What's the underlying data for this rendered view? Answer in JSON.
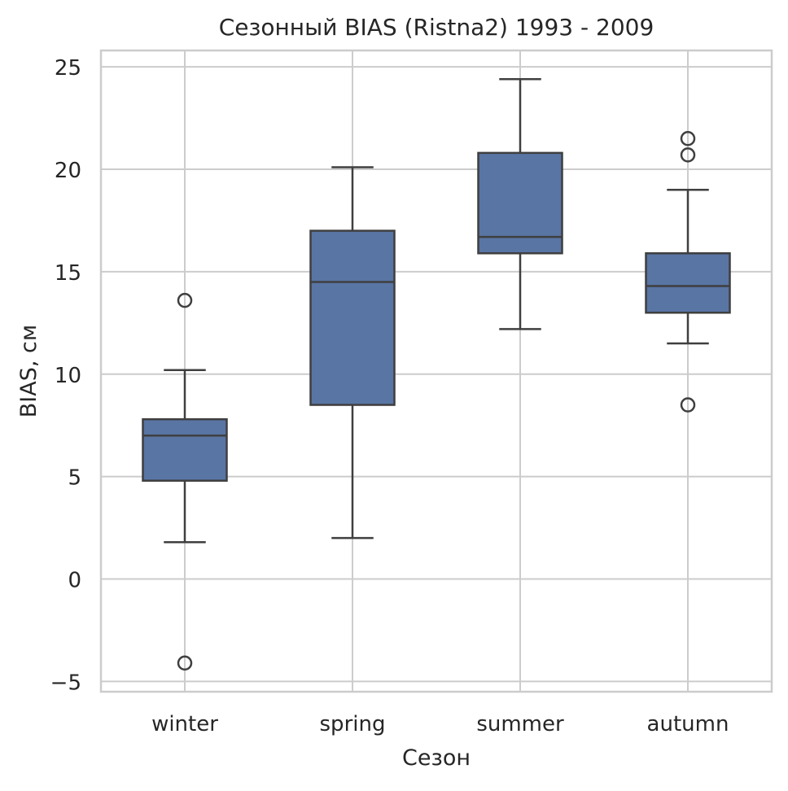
{
  "chart_data": {
    "type": "box",
    "title": "Сезонный BIAS (Ristna2) 1993 - 2009",
    "xlabel": "Сезон",
    "ylabel": "BIAS, см",
    "ylim": [
      -5.5,
      25.8
    ],
    "yticks": [
      -5,
      0,
      5,
      10,
      15,
      20,
      25
    ],
    "ytick_labels": [
      "−5",
      "0",
      "5",
      "10",
      "15",
      "20",
      "25"
    ],
    "grid": true,
    "categories": [
      "winter",
      "spring",
      "summer",
      "autumn"
    ],
    "boxes": [
      {
        "category": "winter",
        "whisker_low": 1.8,
        "q1": 4.8,
        "median": 7.0,
        "q3": 7.8,
        "whisker_high": 10.2,
        "outliers": [
          13.6,
          -4.1
        ]
      },
      {
        "category": "spring",
        "whisker_low": 2.0,
        "q1": 8.5,
        "median": 14.5,
        "q3": 17.0,
        "whisker_high": 20.1,
        "outliers": []
      },
      {
        "category": "summer",
        "whisker_low": 12.2,
        "q1": 15.9,
        "median": 16.7,
        "q3": 20.8,
        "whisker_high": 24.4,
        "outliers": []
      },
      {
        "category": "autumn",
        "whisker_low": 11.5,
        "q1": 13.0,
        "median": 14.3,
        "q3": 15.9,
        "whisker_high": 19.0,
        "outliers": [
          21.5,
          20.7,
          8.5
        ]
      }
    ],
    "colors": {
      "box_fill": "#5875a4",
      "line": "#3f3f3f",
      "grid": "#cccccc",
      "spine": "#cccccc"
    }
  }
}
